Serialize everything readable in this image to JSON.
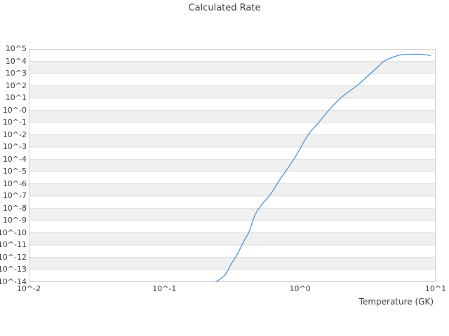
{
  "chart_data": {
    "type": "line",
    "title": "Calculated Rate",
    "xlabel": "Temperature (GK)",
    "ylabel": "",
    "x_scale": "log10",
    "y_scale": "log10",
    "x_range_log10": [
      -2,
      1
    ],
    "y_range_log10": [
      -14,
      5
    ],
    "x_ticks": [
      {
        "log10": -2,
        "label": "10^-2"
      },
      {
        "log10": -1,
        "label": "10^-1"
      },
      {
        "log10": 0,
        "label": "10^0"
      },
      {
        "log10": 1,
        "label": "10^1"
      }
    ],
    "y_ticks": [
      {
        "log10": 5,
        "label": "10^5"
      },
      {
        "log10": 4,
        "label": "10^4"
      },
      {
        "log10": 3,
        "label": "10^3"
      },
      {
        "log10": 2,
        "label": "10^2"
      },
      {
        "log10": 1,
        "label": "10^1"
      },
      {
        "log10": 0,
        "label": "10^-0"
      },
      {
        "log10": -1,
        "label": "10^-1"
      },
      {
        "log10": -2,
        "label": "10^-2"
      },
      {
        "log10": -3,
        "label": "10^-3"
      },
      {
        "log10": -4,
        "label": "10^-4"
      },
      {
        "log10": -5,
        "label": "10^-5"
      },
      {
        "log10": -6,
        "label": "10^-6"
      },
      {
        "log10": -7,
        "label": "10^-7"
      },
      {
        "log10": -8,
        "label": "10^-8"
      },
      {
        "log10": -9,
        "label": "10^-9"
      },
      {
        "log10": -10,
        "label": "10^-10"
      },
      {
        "log10": -11,
        "label": "10^-11"
      },
      {
        "log10": -12,
        "label": "10^-12"
      },
      {
        "log10": -13,
        "label": "10^-13"
      },
      {
        "log10": -14,
        "label": "10^-14"
      }
    ],
    "grid": {
      "horizontal_bands": true,
      "alternating_band_fill": true,
      "vertical_gridlines": false
    },
    "legend": "none",
    "series": [
      {
        "name": "calculated rate",
        "color": "#4f94d8",
        "points_note": "each point is [log10(Temperature/GK), log10(rate)]",
        "points_log10": [
          [
            -0.62,
            -14.0
          ],
          [
            -0.585,
            -13.75
          ],
          [
            -0.55,
            -13.4
          ],
          [
            -0.51,
            -12.6
          ],
          [
            -0.46,
            -11.7
          ],
          [
            -0.415,
            -10.7
          ],
          [
            -0.375,
            -9.9
          ],
          [
            -0.33,
            -8.5
          ],
          [
            -0.275,
            -7.6
          ],
          [
            -0.22,
            -6.9
          ],
          [
            -0.145,
            -5.6
          ],
          [
            -0.04,
            -3.9
          ],
          [
            0.06,
            -2.0
          ],
          [
            0.13,
            -1.1
          ],
          [
            0.22,
            0.1
          ],
          [
            0.3,
            1.0
          ],
          [
            0.375,
            1.65
          ],
          [
            0.435,
            2.15
          ],
          [
            0.5,
            2.8
          ],
          [
            0.56,
            3.4
          ],
          [
            0.62,
            4.0
          ],
          [
            0.69,
            4.35
          ],
          [
            0.755,
            4.54
          ],
          [
            0.83,
            4.57
          ],
          [
            0.9,
            4.57
          ],
          [
            0.96,
            4.46
          ]
        ]
      }
    ]
  },
  "style": {
    "background": "#ffffff",
    "band_fill": "#f0f0f0",
    "gridline_color": "#dedede",
    "border_color": "#d3d3d3",
    "text_color": "#3d3d3d",
    "line_color": "#4f94d8"
  }
}
